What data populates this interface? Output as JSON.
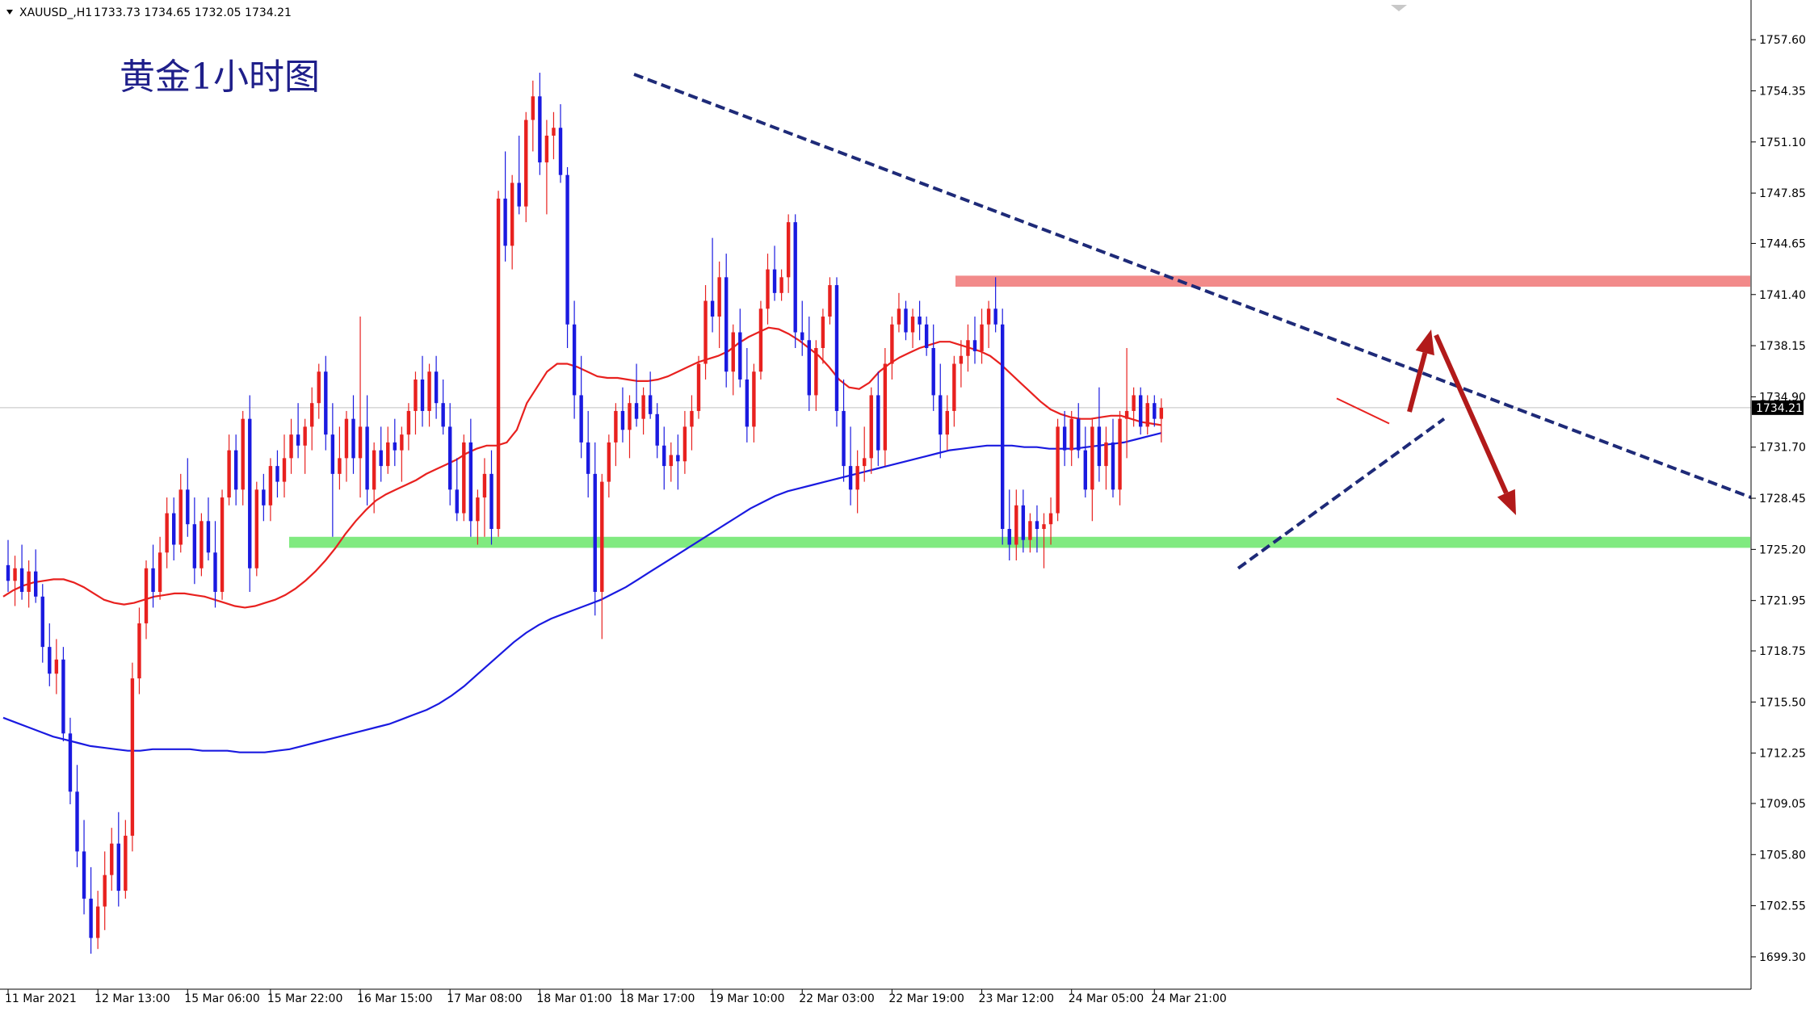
{
  "header": {
    "symbol": "XAUUSD_,H1",
    "quote": "1733.73 1734.65 1732.05 1734.21"
  },
  "chart_data": {
    "type": "candlestick",
    "title": "黄金1小时图",
    "ylim": [
      1697.5,
      1759.2
    ],
    "y_ticks": [
      "1757.60",
      "1754.35",
      "1751.10",
      "1747.85",
      "1744.65",
      "1741.40",
      "1738.15",
      "1734.90",
      "1731.70",
      "1728.45",
      "1725.20",
      "1721.95",
      "1718.75",
      "1715.50",
      "1712.25",
      "1709.05",
      "1705.80",
      "1702.55",
      "1699.30"
    ],
    "x_ticks": [
      "11 Mar 2021",
      "12 Mar 13:00",
      "15 Mar 06:00",
      "15 Mar 22:00",
      "16 Mar 15:00",
      "17 Mar 08:00",
      "18 Mar 01:00",
      "18 Mar 17:00",
      "19 Mar 10:00",
      "22 Mar 03:00",
      "22 Mar 19:00",
      "23 Mar 12:00",
      "24 Mar 05:00",
      "24 Mar 21:00"
    ],
    "current_price": "1734.21",
    "colors": {
      "bull": "#e8211f",
      "bear": "#1a1ae0",
      "ma_fast": "#e8211f",
      "ma_slow": "#1a1ae0",
      "resistance_zone": "#f28a8a",
      "support_zone": "#80ea80",
      "trendline": "#1e2a78",
      "arrow": "#b21a1a"
    },
    "zones": [
      {
        "name": "resistance",
        "from": 1741.9,
        "to": 1742.6
      },
      {
        "name": "support",
        "from": 1725.3,
        "to": 1726.0
      }
    ],
    "ohlc": [
      [
        1724.2,
        1725.8,
        1722.5,
        1723.2
      ],
      [
        1723.2,
        1724.8,
        1721.6,
        1724.0
      ],
      [
        1724.0,
        1725.5,
        1722.0,
        1722.5
      ],
      [
        1722.5,
        1724.5,
        1721.5,
        1723.8
      ],
      [
        1723.8,
        1725.2,
        1721.8,
        1722.2
      ],
      [
        1722.2,
        1723.0,
        1718.0,
        1719.0
      ],
      [
        1719.0,
        1720.5,
        1716.5,
        1717.3
      ],
      [
        1717.3,
        1719.5,
        1716.0,
        1718.2
      ],
      [
        1718.2,
        1719.0,
        1713.0,
        1713.5
      ],
      [
        1713.5,
        1714.5,
        1709.0,
        1709.8
      ],
      [
        1709.8,
        1711.5,
        1705.0,
        1706.0
      ],
      [
        1706.0,
        1708.0,
        1702.0,
        1703.0
      ],
      [
        1703.0,
        1705.0,
        1699.5,
        1700.5
      ],
      [
        1700.5,
        1703.5,
        1699.8,
        1702.5
      ],
      [
        1702.5,
        1706.0,
        1701.0,
        1704.5
      ],
      [
        1704.5,
        1707.5,
        1703.5,
        1706.5
      ],
      [
        1706.5,
        1708.5,
        1702.5,
        1703.5
      ],
      [
        1703.5,
        1708.0,
        1703.0,
        1707.0
      ],
      [
        1707.0,
        1718.0,
        1706.0,
        1717.0
      ],
      [
        1717.0,
        1721.5,
        1716.0,
        1720.5
      ],
      [
        1720.5,
        1724.5,
        1719.5,
        1724.0
      ],
      [
        1724.0,
        1725.5,
        1721.5,
        1722.5
      ],
      [
        1722.5,
        1726.0,
        1722.0,
        1725.0
      ],
      [
        1725.0,
        1728.5,
        1724.0,
        1727.5
      ],
      [
        1727.5,
        1728.5,
        1724.5,
        1725.5
      ],
      [
        1725.5,
        1730.0,
        1725.0,
        1729.0
      ],
      [
        1729.0,
        1731.0,
        1726.0,
        1726.8
      ],
      [
        1726.8,
        1728.5,
        1723.0,
        1724.0
      ],
      [
        1724.0,
        1727.5,
        1723.5,
        1727.0
      ],
      [
        1727.0,
        1728.5,
        1724.5,
        1725.0
      ],
      [
        1725.0,
        1727.0,
        1721.5,
        1722.5
      ],
      [
        1722.5,
        1729.0,
        1722.0,
        1728.5
      ],
      [
        1728.5,
        1732.5,
        1728.0,
        1731.5
      ],
      [
        1731.5,
        1732.5,
        1728.0,
        1729.0
      ],
      [
        1729.0,
        1734.0,
        1728.0,
        1733.5
      ],
      [
        1733.5,
        1735.0,
        1722.5,
        1724.0
      ],
      [
        1724.0,
        1729.5,
        1723.5,
        1729.0
      ],
      [
        1729.0,
        1730.0,
        1727.0,
        1728.0
      ],
      [
        1728.0,
        1731.0,
        1727.0,
        1730.5
      ],
      [
        1730.5,
        1731.5,
        1728.5,
        1729.5
      ],
      [
        1729.5,
        1732.5,
        1728.5,
        1731.0
      ],
      [
        1731.0,
        1733.5,
        1730.0,
        1732.5
      ],
      [
        1732.5,
        1734.5,
        1731.0,
        1731.8
      ],
      [
        1731.8,
        1733.5,
        1730.0,
        1733.0
      ],
      [
        1733.0,
        1735.5,
        1731.5,
        1734.5
      ],
      [
        1734.5,
        1737.0,
        1733.5,
        1736.5
      ],
      [
        1736.5,
        1737.5,
        1731.5,
        1732.5
      ],
      [
        1732.5,
        1734.5,
        1726.0,
        1730.0
      ],
      [
        1730.0,
        1733.0,
        1729.0,
        1731.0
      ],
      [
        1731.0,
        1734.0,
        1729.5,
        1733.5
      ],
      [
        1733.5,
        1735.0,
        1730.0,
        1731.0
      ],
      [
        1731.0,
        1740.0,
        1728.5,
        1733.0
      ],
      [
        1733.0,
        1735.0,
        1728.0,
        1729.0
      ],
      [
        1729.0,
        1732.0,
        1727.5,
        1731.5
      ],
      [
        1731.5,
        1733.0,
        1729.5,
        1730.5
      ],
      [
        1730.5,
        1733.0,
        1730.0,
        1732.0
      ],
      [
        1732.0,
        1733.5,
        1730.5,
        1731.5
      ],
      [
        1731.5,
        1733.0,
        1729.5,
        1732.5
      ],
      [
        1732.5,
        1734.5,
        1731.5,
        1734.0
      ],
      [
        1734.0,
        1736.5,
        1732.5,
        1736.0
      ],
      [
        1736.0,
        1737.5,
        1733.0,
        1734.0
      ],
      [
        1734.0,
        1737.0,
        1733.0,
        1736.5
      ],
      [
        1736.5,
        1737.5,
        1733.5,
        1734.5
      ],
      [
        1734.5,
        1736.0,
        1732.5,
        1733.0
      ],
      [
        1733.0,
        1734.5,
        1728.0,
        1729.0
      ],
      [
        1729.0,
        1731.0,
        1727.0,
        1727.5
      ],
      [
        1727.5,
        1732.5,
        1727.0,
        1732.0
      ],
      [
        1732.0,
        1733.5,
        1726.0,
        1727.0
      ],
      [
        1727.0,
        1729.0,
        1725.5,
        1728.5
      ],
      [
        1728.5,
        1731.0,
        1726.0,
        1730.0
      ],
      [
        1730.0,
        1731.5,
        1725.5,
        1726.5
      ],
      [
        1726.5,
        1748.0,
        1726.0,
        1747.5
      ],
      [
        1747.5,
        1750.5,
        1743.5,
        1744.5
      ],
      [
        1744.5,
        1749.0,
        1743.0,
        1748.5
      ],
      [
        1748.5,
        1751.5,
        1746.5,
        1747.0
      ],
      [
        1747.0,
        1753.0,
        1746.0,
        1752.5
      ],
      [
        1752.5,
        1755.0,
        1750.5,
        1754.0
      ],
      [
        1754.0,
        1755.5,
        1749.0,
        1749.8
      ],
      [
        1749.8,
        1752.5,
        1746.5,
        1751.5
      ],
      [
        1751.5,
        1753.0,
        1750.0,
        1752.0
      ],
      [
        1752.0,
        1753.5,
        1748.5,
        1749.0
      ],
      [
        1749.0,
        1749.5,
        1738.0,
        1739.5
      ],
      [
        1739.5,
        1741.0,
        1733.5,
        1735.0
      ],
      [
        1735.0,
        1737.5,
        1731.0,
        1732.0
      ],
      [
        1732.0,
        1734.0,
        1728.5,
        1730.0
      ],
      [
        1730.0,
        1732.0,
        1721.0,
        1722.5
      ],
      [
        1722.5,
        1730.0,
        1719.5,
        1729.5
      ],
      [
        1729.5,
        1732.5,
        1728.5,
        1732.0
      ],
      [
        1732.0,
        1734.5,
        1730.5,
        1734.0
      ],
      [
        1734.0,
        1735.5,
        1732.0,
        1732.8
      ],
      [
        1732.8,
        1735.0,
        1731.0,
        1734.5
      ],
      [
        1734.5,
        1737.0,
        1733.0,
        1733.5
      ],
      [
        1733.5,
        1735.5,
        1732.5,
        1735.0
      ],
      [
        1735.0,
        1736.5,
        1733.5,
        1733.8
      ],
      [
        1733.8,
        1734.5,
        1731.0,
        1731.8
      ],
      [
        1731.8,
        1733.0,
        1729.0,
        1730.5
      ],
      [
        1730.5,
        1732.0,
        1729.5,
        1731.2
      ],
      [
        1731.2,
        1732.5,
        1729.0,
        1730.8
      ],
      [
        1730.8,
        1734.0,
        1730.0,
        1733.0
      ],
      [
        1733.0,
        1735.0,
        1731.5,
        1734.0
      ],
      [
        1734.0,
        1737.5,
        1733.5,
        1737.0
      ],
      [
        1737.0,
        1742.0,
        1736.0,
        1741.0
      ],
      [
        1741.0,
        1745.0,
        1739.0,
        1740.0
      ],
      [
        1740.0,
        1743.5,
        1738.0,
        1742.5
      ],
      [
        1742.5,
        1744.0,
        1735.5,
        1736.5
      ],
      [
        1736.5,
        1739.5,
        1735.0,
        1739.0
      ],
      [
        1739.0,
        1740.5,
        1735.5,
        1736.0
      ],
      [
        1736.0,
        1738.0,
        1732.0,
        1733.0
      ],
      [
        1733.0,
        1737.0,
        1732.0,
        1736.5
      ],
      [
        1736.5,
        1741.0,
        1736.0,
        1740.5
      ],
      [
        1740.5,
        1744.0,
        1739.5,
        1743.0
      ],
      [
        1743.0,
        1744.5,
        1741.0,
        1741.5
      ],
      [
        1741.5,
        1743.0,
        1741.0,
        1742.5
      ],
      [
        1742.5,
        1746.5,
        1741.5,
        1746.0
      ],
      [
        1746.0,
        1746.5,
        1738.0,
        1739.0
      ],
      [
        1739.0,
        1741.0,
        1737.5,
        1738.5
      ],
      [
        1738.5,
        1740.0,
        1734.0,
        1735.0
      ],
      [
        1735.0,
        1738.5,
        1734.0,
        1738.0
      ],
      [
        1738.0,
        1740.5,
        1737.0,
        1740.0
      ],
      [
        1740.0,
        1742.5,
        1739.5,
        1742.0
      ],
      [
        1742.0,
        1742.5,
        1733.0,
        1734.0
      ],
      [
        1734.0,
        1736.0,
        1729.5,
        1730.5
      ],
      [
        1730.5,
        1733.0,
        1728.0,
        1729.0
      ],
      [
        1729.0,
        1731.5,
        1727.5,
        1730.5
      ],
      [
        1730.5,
        1733.0,
        1729.5,
        1731.0
      ],
      [
        1731.0,
        1735.5,
        1730.0,
        1735.0
      ],
      [
        1735.0,
        1736.5,
        1730.5,
        1731.5
      ],
      [
        1731.5,
        1738.0,
        1730.5,
        1737.0
      ],
      [
        1737.0,
        1740.0,
        1736.0,
        1739.5
      ],
      [
        1739.5,
        1741.5,
        1739.0,
        1740.5
      ],
      [
        1740.5,
        1741.0,
        1738.5,
        1739.0
      ],
      [
        1739.0,
        1740.5,
        1738.0,
        1740.0
      ],
      [
        1740.0,
        1741.0,
        1738.5,
        1739.5
      ],
      [
        1739.5,
        1740.0,
        1737.5,
        1738.0
      ],
      [
        1738.0,
        1739.5,
        1734.0,
        1735.0
      ],
      [
        1735.0,
        1737.0,
        1731.0,
        1732.5
      ],
      [
        1732.5,
        1735.0,
        1731.5,
        1734.0
      ],
      [
        1734.0,
        1737.5,
        1733.0,
        1737.0
      ],
      [
        1737.0,
        1738.5,
        1735.5,
        1737.5
      ],
      [
        1737.5,
        1739.5,
        1736.5,
        1738.5
      ],
      [
        1738.5,
        1740.0,
        1737.0,
        1737.8
      ],
      [
        1737.8,
        1740.5,
        1737.0,
        1739.5
      ],
      [
        1739.5,
        1741.0,
        1738.0,
        1740.5
      ],
      [
        1740.5,
        1742.5,
        1739.0,
        1739.5
      ],
      [
        1739.5,
        1740.5,
        1725.5,
        1726.5
      ],
      [
        1726.5,
        1729.0,
        1724.5,
        1725.5
      ],
      [
        1725.5,
        1729.0,
        1724.5,
        1728.0
      ],
      [
        1728.0,
        1729.0,
        1725.0,
        1725.8
      ],
      [
        1725.8,
        1727.5,
        1725.0,
        1727.0
      ],
      [
        1727.0,
        1728.0,
        1725.0,
        1726.5
      ],
      [
        1726.5,
        1727.5,
        1724.0,
        1726.8
      ],
      [
        1726.8,
        1728.5,
        1725.5,
        1727.5
      ],
      [
        1727.5,
        1733.5,
        1727.0,
        1733.0
      ],
      [
        1733.0,
        1734.0,
        1730.5,
        1731.5
      ],
      [
        1731.5,
        1734.0,
        1730.5,
        1733.5
      ],
      [
        1733.5,
        1734.5,
        1731.0,
        1731.5
      ],
      [
        1731.5,
        1733.0,
        1728.5,
        1729.0
      ],
      [
        1729.0,
        1733.5,
        1727.0,
        1733.0
      ],
      [
        1733.0,
        1735.5,
        1729.5,
        1730.5
      ],
      [
        1730.5,
        1733.0,
        1729.0,
        1732.0
      ],
      [
        1732.0,
        1733.5,
        1728.5,
        1729.0
      ],
      [
        1729.0,
        1734.0,
        1728.0,
        1733.5
      ],
      [
        1733.5,
        1738.0,
        1731.0,
        1734.0
      ],
      [
        1734.0,
        1735.5,
        1733.0,
        1735.0
      ],
      [
        1735.0,
        1735.5,
        1732.5,
        1733.0
      ],
      [
        1733.0,
        1735.0,
        1732.5,
        1734.5
      ],
      [
        1734.5,
        1735.0,
        1733.0,
        1733.5
      ],
      [
        1733.5,
        1734.8,
        1732.0,
        1734.2
      ]
    ],
    "ma_fast": [
      1722.2,
      1722.6,
      1722.9,
      1723.1,
      1723.2,
      1723.3,
      1723.3,
      1723.1,
      1722.8,
      1722.4,
      1722.0,
      1721.8,
      1721.7,
      1721.8,
      1722.0,
      1722.2,
      1722.3,
      1722.4,
      1722.4,
      1722.3,
      1722.2,
      1722.0,
      1721.8,
      1721.6,
      1721.5,
      1721.6,
      1721.8,
      1722.0,
      1722.3,
      1722.7,
      1723.2,
      1723.8,
      1724.5,
      1725.3,
      1726.2,
      1727.0,
      1727.7,
      1728.3,
      1728.7,
      1729.0,
      1729.3,
      1729.6,
      1730.0,
      1730.3,
      1730.6,
      1730.9,
      1731.3,
      1731.6,
      1731.8,
      1731.8,
      1732.0,
      1732.8,
      1734.5,
      1735.5,
      1736.5,
      1737.0,
      1737.0,
      1736.8,
      1736.5,
      1736.2,
      1736.1,
      1736.1,
      1736.0,
      1735.9,
      1735.9,
      1736.0,
      1736.2,
      1736.5,
      1736.8,
      1737.1,
      1737.3,
      1737.5,
      1737.8,
      1738.3,
      1738.7,
      1739.0,
      1739.3,
      1739.2,
      1738.9,
      1738.5,
      1738.0,
      1737.5,
      1736.8,
      1736.0,
      1735.5,
      1735.4,
      1735.8,
      1736.5,
      1737.0,
      1737.4,
      1737.7,
      1738.0,
      1738.2,
      1738.4,
      1738.4,
      1738.2,
      1738.0,
      1737.8,
      1737.5,
      1737.0,
      1736.4,
      1735.8,
      1735.2,
      1734.6,
      1734.1,
      1733.8,
      1733.6,
      1733.5,
      1733.5,
      1733.6,
      1733.7,
      1733.7,
      1733.5,
      1733.3,
      1733.2,
      1733.1
    ],
    "ma_slow": [
      1714.5,
      1714.2,
      1713.9,
      1713.6,
      1713.3,
      1713.1,
      1712.9,
      1712.7,
      1712.6,
      1712.5,
      1712.4,
      1712.4,
      1712.5,
      1712.5,
      1712.5,
      1712.5,
      1712.4,
      1712.4,
      1712.4,
      1712.3,
      1712.3,
      1712.3,
      1712.4,
      1712.5,
      1712.7,
      1712.9,
      1713.1,
      1713.3,
      1713.5,
      1713.7,
      1713.9,
      1714.1,
      1714.4,
      1714.7,
      1715.0,
      1715.4,
      1715.9,
      1716.5,
      1717.2,
      1717.9,
      1718.6,
      1719.3,
      1719.9,
      1720.4,
      1720.8,
      1721.1,
      1721.4,
      1721.7,
      1722.0,
      1722.4,
      1722.8,
      1723.3,
      1723.8,
      1724.3,
      1724.8,
      1725.3,
      1725.8,
      1726.3,
      1726.8,
      1727.3,
      1727.8,
      1728.2,
      1728.6,
      1728.9,
      1729.1,
      1729.3,
      1729.5,
      1729.7,
      1729.9,
      1730.1,
      1730.3,
      1730.5,
      1730.7,
      1730.9,
      1731.1,
      1731.3,
      1731.5,
      1731.6,
      1731.7,
      1731.8,
      1731.8,
      1731.8,
      1731.7,
      1731.7,
      1731.6,
      1731.6,
      1731.6,
      1731.7,
      1731.8,
      1731.9,
      1732.0,
      1732.2,
      1732.4,
      1732.6
    ]
  }
}
